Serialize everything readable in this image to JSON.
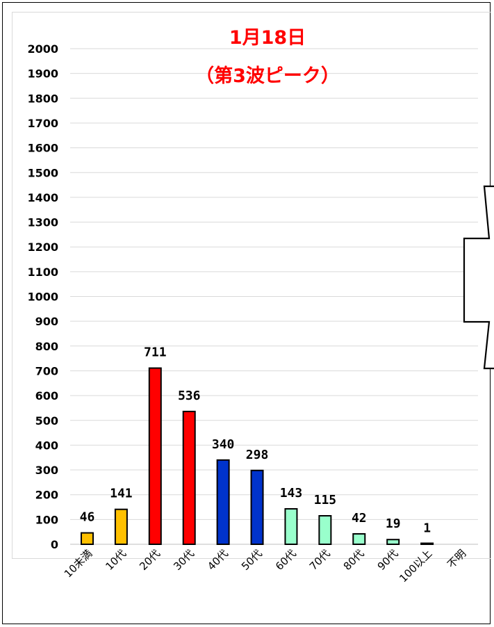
{
  "chart_data": {
    "type": "bar",
    "title_lines": [
      "1月18日",
      "（第3波ピーク）"
    ],
    "categories": [
      "10未満",
      "10代",
      "20代",
      "30代",
      "40代",
      "50代",
      "60代",
      "70代",
      "80代",
      "90代",
      "100以上",
      "不明"
    ],
    "values": [
      46,
      141,
      711,
      536,
      340,
      298,
      143,
      115,
      42,
      19,
      1,
      null
    ],
    "data_labels": [
      "46",
      "141",
      "711",
      "536",
      "340",
      "298",
      "143",
      "115",
      "42",
      "19",
      "1",
      ""
    ],
    "bar_colors": [
      "#ffc000",
      "#ffc000",
      "#ff0000",
      "#ff0000",
      "#0033cc",
      "#0033cc",
      "#99ffcc",
      "#99ffcc",
      "#99ffcc",
      "#99ffcc",
      "#99ffcc",
      "#99ffcc"
    ],
    "y_ticks": [
      "0",
      "100",
      "200",
      "300",
      "400",
      "500",
      "600",
      "700",
      "800",
      "900",
      "1000",
      "1100",
      "1200",
      "1300",
      "1400",
      "1500",
      "1600",
      "1700",
      "1800",
      "1900",
      "2000"
    ],
    "ylim": [
      0,
      2000
    ],
    "ytick_step": 100,
    "grid": true,
    "xlabel": "",
    "ylabel": "",
    "title_color": "#ff0000"
  }
}
